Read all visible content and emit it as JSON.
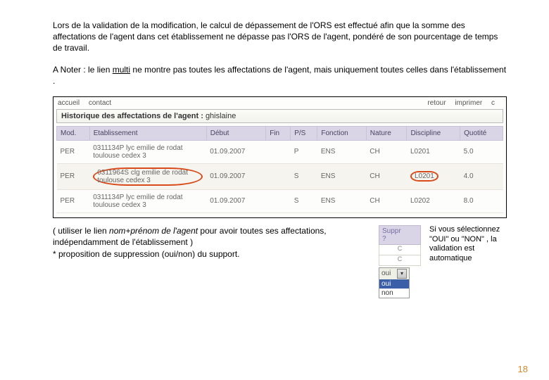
{
  "paragraphs": {
    "p1": "Lors de la validation de la modification, le calcul de dépassement de l'ORS est effectué afin que la somme des affectations de l'agent dans cet établissement ne dépasse pas l'ORS de l'agent, pondéré de son pourcentage de temps de travail.",
    "p2_a": "A Noter : le lien ",
    "p2_link": "multi",
    "p2_b": " ne montre pas toutes les affectations de l'agent, mais uniquement toutes celles dans l'établissement .",
    "p3_a": "( utiliser le lien ",
    "p3_i": "nom+prénom de l'agent",
    "p3_b": " pour avoir toutes ses affectations, indépendamment de l'établissement )",
    "p4": "* proposition de suppression (oui/non) du support.",
    "note": "Si vous sélectionnez \"OUI\" ou \"NON\" , la validation est automatique"
  },
  "topbar": {
    "left1": "accueil",
    "left2": "contact",
    "right1": "retour",
    "right2": "imprimer",
    "right3": "c"
  },
  "histo": {
    "label": "Historique des affectations de l'agent :",
    "blank": "            ",
    "name": "ghislaine"
  },
  "table": {
    "headers": [
      "Mod.",
      "Etablissement",
      "Début",
      "Fin",
      "P/S",
      "Fonction",
      "Nature",
      "Discipline",
      "Quotité"
    ],
    "rows": [
      {
        "mod": "PER",
        "etab": "0311134P lyc emilie de rodat toulouse cedex 3",
        "debut": "01.09.2007",
        "fin": "",
        "ps": "P",
        "fonc": "ENS",
        "nat": "CH",
        "disc": "L0201",
        "quot": "5.0",
        "circle_etab": false,
        "circle_disc": false,
        "alt": false
      },
      {
        "mod": "PER",
        "etab": "0311964S clg emilie de rodat toulouse cedex 3",
        "debut": "01.09.2007",
        "fin": "",
        "ps": "S",
        "fonc": "ENS",
        "nat": "CH",
        "disc": "L0201",
        "quot": "4.0",
        "circle_etab": true,
        "circle_disc": true,
        "alt": true
      },
      {
        "mod": "PER",
        "etab": "0311134P lyc emilie de rodat toulouse cedex 3",
        "debut": "01.09.2007",
        "fin": "",
        "ps": "S",
        "fonc": "ENS",
        "nat": "CH",
        "disc": "L0202",
        "quot": "8.0",
        "circle_etab": false,
        "circle_disc": false,
        "alt": false
      }
    ]
  },
  "suppr": {
    "head1": "Suppr",
    "head2": "?",
    "c1": "C",
    "c2": "C",
    "sel": "oui",
    "opt_hi": "oui",
    "opt2": "non"
  },
  "pagenum": "18"
}
